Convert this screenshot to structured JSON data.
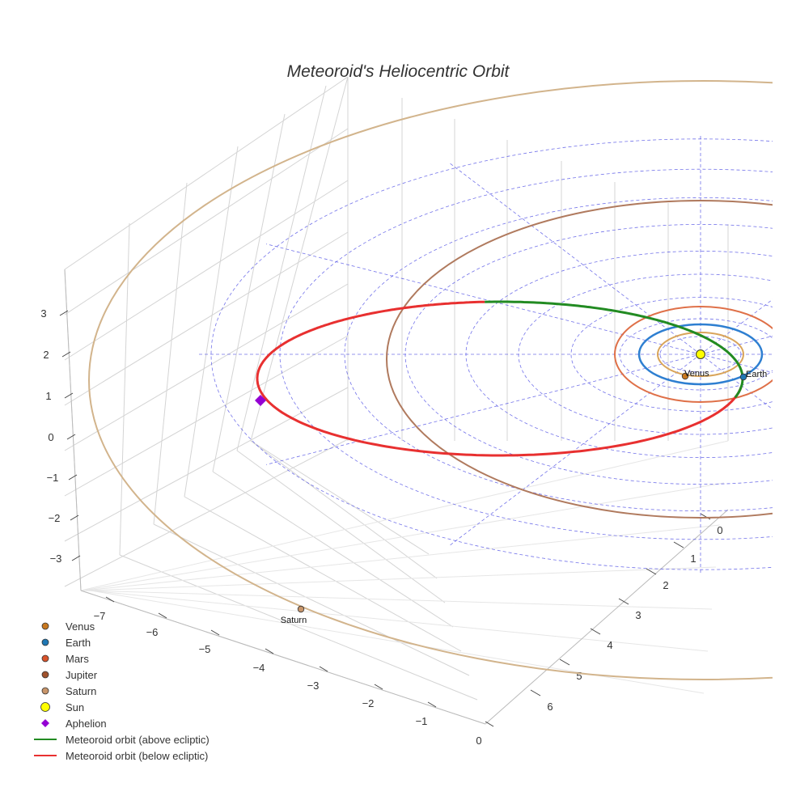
{
  "chart_data": {
    "type": "3d-orbit-plot",
    "title": "Meteoroid's Heliocentric Orbit",
    "axes": {
      "x": {
        "label": "",
        "ticks": [
          "−7",
          "−6",
          "−5",
          "−4",
          "−3",
          "−2",
          "−1",
          "0"
        ]
      },
      "y": {
        "label": "",
        "ticks": [
          "0",
          "1",
          "2",
          "3",
          "4",
          "5",
          "6"
        ]
      },
      "z": {
        "label": "",
        "ticks": [
          "−3",
          "−2",
          "−1",
          "0",
          "1",
          "2",
          "3"
        ]
      }
    },
    "bodies": [
      {
        "name": "Venus",
        "label": "Venus",
        "color": "#c8781f",
        "marker": "circle",
        "orbit_color": "#d9a45a"
      },
      {
        "name": "Earth",
        "label": "Earth",
        "color": "#1f77b4",
        "marker": "circle",
        "orbit_color": "#2e7fd1"
      },
      {
        "name": "Mars",
        "label": "",
        "color": "#d9532b",
        "marker": "circle",
        "orbit_color": "#df7048"
      },
      {
        "name": "Jupiter",
        "label": "",
        "color": "#a0522d",
        "marker": "circle",
        "orbit_color": "#b07a5e"
      },
      {
        "name": "Saturn",
        "label": "Saturn",
        "color": "#c8956a",
        "marker": "circle",
        "orbit_color": "#d2b48c"
      }
    ],
    "sun": {
      "name": "Sun",
      "color": "#ffff00"
    },
    "aphelion": {
      "name": "Aphelion",
      "color": "#9400d3"
    },
    "meteoroid": {
      "above": {
        "name": "Meteoroid orbit (above ecliptic)",
        "color": "#228b22"
      },
      "below": {
        "name": "Meteoroid orbit (below ecliptic)",
        "color": "#e83030"
      }
    },
    "ecliptic_grid": {
      "color": "#5a5ae6",
      "style": "dashed"
    },
    "legend": {
      "position": "bottom-left",
      "entries": [
        {
          "label": "Venus",
          "kind": "dot",
          "color": "#c8781f"
        },
        {
          "label": "Earth",
          "kind": "dot",
          "color": "#1f77b4"
        },
        {
          "label": "Mars",
          "kind": "dot",
          "color": "#d9532b"
        },
        {
          "label": "Jupiter",
          "kind": "dot",
          "color": "#a0522d"
        },
        {
          "label": "Saturn",
          "kind": "dot",
          "color": "#c8956a"
        },
        {
          "label": "Sun",
          "kind": "sun",
          "color": "#ffff00"
        },
        {
          "label": "Aphelion",
          "kind": "diamond",
          "color": "#9400d3"
        },
        {
          "label": "Meteoroid orbit (above ecliptic)",
          "kind": "line",
          "color": "#228b22"
        },
        {
          "label": "Meteoroid orbit (below ecliptic)",
          "kind": "line",
          "color": "#e83030"
        }
      ]
    }
  }
}
